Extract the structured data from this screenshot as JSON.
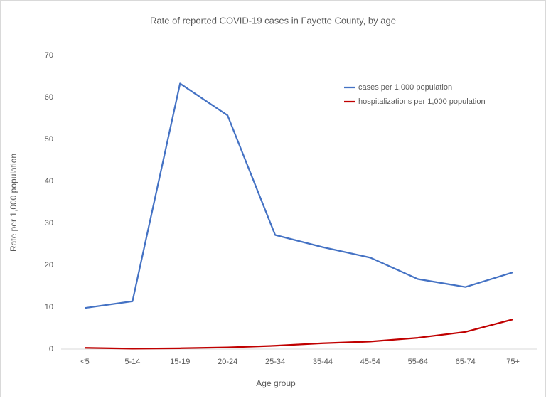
{
  "chart_data": {
    "type": "line",
    "title": "Rate of reported COVID-19 cases in Fayette County, by age",
    "x_label": "Age group",
    "y_label": "Rate per 1,000 population",
    "categories": [
      "<5",
      "5-14",
      "15-19",
      "20-24",
      "25-34",
      "35-44",
      "45-54",
      "55-64",
      "65-74",
      "75+"
    ],
    "series": [
      {
        "name": "cases per 1,000 population",
        "color": "#4472c4",
        "values": [
          9.8,
          11.4,
          63.3,
          55.7,
          27.2,
          24.3,
          21.8,
          16.7,
          14.8,
          18.3
        ]
      },
      {
        "name": "hospitalizations per 1,000 population",
        "color": "#c00000",
        "values": [
          0.3,
          0.1,
          0.2,
          0.4,
          0.8,
          1.4,
          1.8,
          2.7,
          4.1,
          7.1
        ]
      }
    ],
    "ylim": [
      0,
      70
    ],
    "yticks": [
      0,
      10,
      20,
      30,
      40,
      50,
      60,
      70
    ],
    "grid": false,
    "legend": "top-right"
  }
}
